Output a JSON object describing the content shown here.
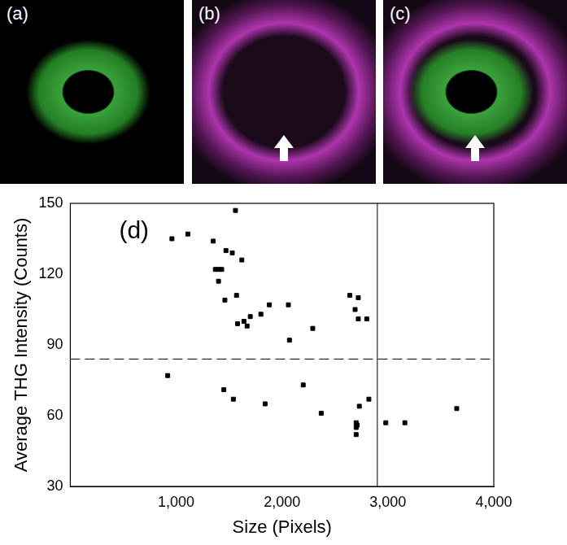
{
  "panels": {
    "labels": [
      "(a)",
      "(b)",
      "(c)"
    ]
  },
  "chart_data": {
    "type": "scatter",
    "annotation": "(d)",
    "x_label": "Size (Pixels)",
    "y_label": "Average THG Intensity (Counts)",
    "x": [
      960,
      1110,
      1350,
      1370,
      1400,
      1400,
      1430,
      1460,
      1470,
      1530,
      1560,
      1570,
      1580,
      1620,
      1640,
      1670,
      1700,
      1800,
      1880,
      2060,
      2070,
      2290,
      2640,
      2690,
      2720,
      2720,
      2800,
      920,
      1450,
      1540,
      1840,
      2200,
      2370,
      2700,
      2700,
      2700,
      2710,
      2730,
      2820,
      2980,
      3160,
      3650
    ],
    "values": [
      135,
      137,
      134,
      122,
      122,
      117,
      122,
      109,
      130,
      129,
      147,
      111,
      99,
      126,
      100,
      98,
      102,
      103,
      107,
      107,
      92,
      97,
      111,
      105,
      110,
      101,
      101,
      77,
      71,
      67,
      65,
      73,
      61,
      57,
      55,
      52,
      56,
      64,
      67,
      57,
      57,
      63
    ],
    "color": "#000000",
    "marker": "square",
    "xlim": [
      0,
      4000
    ],
    "xticks": [
      1000,
      2000,
      3000,
      4000
    ],
    "ylim": [
      30,
      150
    ],
    "yticks": [
      30,
      60,
      90,
      120,
      150
    ],
    "grid": false,
    "reference_lines": [
      {
        "axis": "y",
        "value": 84,
        "line_style": "dashed"
      },
      {
        "axis": "x",
        "value": 2900,
        "line_style": "solid"
      }
    ]
  }
}
